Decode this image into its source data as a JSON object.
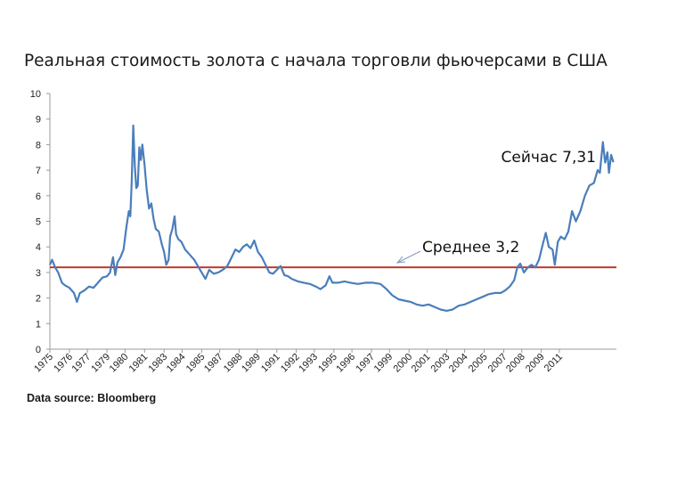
{
  "chart_data": {
    "type": "line",
    "title": "Реальная стоимость золота с начала торговли фьючерсами в США",
    "source": "Data source: Bloomberg",
    "ylim": [
      0,
      10
    ],
    "y_ticks": [
      "0",
      "1",
      "2",
      "3",
      "4",
      "5",
      "6",
      "7",
      "8",
      "9",
      "10"
    ],
    "x_range": [
      1975,
      2012.7
    ],
    "x_ticks": [
      {
        "label": "1975",
        "x": 1975.0
      },
      {
        "label": "1976",
        "x": 1976.3
      },
      {
        "label": "1977",
        "x": 1977.5
      },
      {
        "label": "1979",
        "x": 1978.8
      },
      {
        "label": "1980",
        "x": 1980.0
      },
      {
        "label": "1981",
        "x": 1981.3
      },
      {
        "label": "1983",
        "x": 1982.6
      },
      {
        "label": "1984",
        "x": 1983.8
      },
      {
        "label": "1985",
        "x": 1985.1
      },
      {
        "label": "1987",
        "x": 1986.3
      },
      {
        "label": "1988",
        "x": 1987.6
      },
      {
        "label": "1989",
        "x": 1988.8
      },
      {
        "label": "1991",
        "x": 1990.1
      },
      {
        "label": "1992",
        "x": 1991.4
      },
      {
        "label": "1993",
        "x": 1992.6
      },
      {
        "label": "1995",
        "x": 1993.9
      },
      {
        "label": "1996",
        "x": 1995.1
      },
      {
        "label": "1997",
        "x": 1996.4
      },
      {
        "label": "1999",
        "x": 1997.6
      },
      {
        "label": "2000",
        "x": 1998.9
      },
      {
        "label": "2001",
        "x": 2000.1
      },
      {
        "label": "2003",
        "x": 2001.4
      },
      {
        "label": "2004",
        "x": 2002.6
      },
      {
        "label": "2005",
        "x": 2003.9
      },
      {
        "label": "2007",
        "x": 2005.2
      },
      {
        "label": "2008",
        "x": 2006.4
      },
      {
        "label": "2009",
        "x": 2007.7
      },
      {
        "label": "2011",
        "x": 2008.9
      }
    ],
    "average": {
      "value": 3.2,
      "label": "Среднее 3,2",
      "color": "#c0392b"
    },
    "current": {
      "value": 7.31,
      "label": "Сейчас 7,31"
    },
    "series": [
      {
        "color": "#4a7ebb",
        "points": [
          [
            1975.0,
            3.3
          ],
          [
            1975.15,
            3.5
          ],
          [
            1975.35,
            3.2
          ],
          [
            1975.55,
            3.0
          ],
          [
            1975.8,
            2.6
          ],
          [
            1976.0,
            2.5
          ],
          [
            1976.3,
            2.4
          ],
          [
            1976.6,
            2.2
          ],
          [
            1976.8,
            1.85
          ],
          [
            1977.0,
            2.2
          ],
          [
            1977.3,
            2.3
          ],
          [
            1977.6,
            2.45
          ],
          [
            1977.9,
            2.4
          ],
          [
            1978.2,
            2.6
          ],
          [
            1978.5,
            2.8
          ],
          [
            1978.8,
            2.85
          ],
          [
            1979.0,
            3.0
          ],
          [
            1979.2,
            3.6
          ],
          [
            1979.35,
            2.9
          ],
          [
            1979.5,
            3.4
          ],
          [
            1979.7,
            3.6
          ],
          [
            1979.9,
            3.9
          ],
          [
            1980.1,
            4.8
          ],
          [
            1980.25,
            5.4
          ],
          [
            1980.35,
            5.2
          ],
          [
            1980.45,
            6.6
          ],
          [
            1980.55,
            8.75
          ],
          [
            1980.65,
            7.2
          ],
          [
            1980.75,
            6.3
          ],
          [
            1980.85,
            6.4
          ],
          [
            1980.95,
            7.9
          ],
          [
            1981.05,
            7.4
          ],
          [
            1981.15,
            8.0
          ],
          [
            1981.3,
            7.2
          ],
          [
            1981.45,
            6.2
          ],
          [
            1981.6,
            5.5
          ],
          [
            1981.75,
            5.7
          ],
          [
            1981.9,
            5.1
          ],
          [
            1982.05,
            4.7
          ],
          [
            1982.25,
            4.6
          ],
          [
            1982.45,
            4.1
          ],
          [
            1982.6,
            3.8
          ],
          [
            1982.75,
            3.3
          ],
          [
            1982.9,
            3.5
          ],
          [
            1983.0,
            4.4
          ],
          [
            1983.15,
            4.7
          ],
          [
            1983.3,
            5.2
          ],
          [
            1983.4,
            4.5
          ],
          [
            1983.55,
            4.3
          ],
          [
            1983.75,
            4.2
          ],
          [
            1984.0,
            3.9
          ],
          [
            1984.3,
            3.7
          ],
          [
            1984.6,
            3.5
          ],
          [
            1984.9,
            3.2
          ],
          [
            1985.1,
            3.0
          ],
          [
            1985.35,
            2.75
          ],
          [
            1985.6,
            3.1
          ],
          [
            1985.9,
            2.95
          ],
          [
            1986.2,
            3.0
          ],
          [
            1986.5,
            3.1
          ],
          [
            1986.8,
            3.25
          ],
          [
            1987.1,
            3.6
          ],
          [
            1987.35,
            3.9
          ],
          [
            1987.6,
            3.8
          ],
          [
            1987.85,
            4.0
          ],
          [
            1988.1,
            4.1
          ],
          [
            1988.35,
            3.95
          ],
          [
            1988.6,
            4.25
          ],
          [
            1988.85,
            3.8
          ],
          [
            1989.1,
            3.6
          ],
          [
            1989.35,
            3.3
          ],
          [
            1989.6,
            3.0
          ],
          [
            1989.85,
            2.95
          ],
          [
            1990.1,
            3.1
          ],
          [
            1990.35,
            3.25
          ],
          [
            1990.6,
            2.9
          ],
          [
            1990.85,
            2.85
          ],
          [
            1991.1,
            2.75
          ],
          [
            1991.5,
            2.65
          ],
          [
            1991.9,
            2.6
          ],
          [
            1992.3,
            2.55
          ],
          [
            1992.7,
            2.45
          ],
          [
            1993.0,
            2.35
          ],
          [
            1993.35,
            2.5
          ],
          [
            1993.6,
            2.85
          ],
          [
            1993.8,
            2.6
          ],
          [
            1994.2,
            2.6
          ],
          [
            1994.6,
            2.65
          ],
          [
            1995.0,
            2.6
          ],
          [
            1995.5,
            2.55
          ],
          [
            1996.0,
            2.6
          ],
          [
            1996.5,
            2.6
          ],
          [
            1997.0,
            2.55
          ],
          [
            1997.4,
            2.35
          ],
          [
            1997.8,
            2.1
          ],
          [
            1998.2,
            1.95
          ],
          [
            1998.6,
            1.9
          ],
          [
            1999.0,
            1.85
          ],
          [
            1999.4,
            1.75
          ],
          [
            1999.8,
            1.7
          ],
          [
            2000.2,
            1.75
          ],
          [
            2000.6,
            1.65
          ],
          [
            2001.0,
            1.55
          ],
          [
            2001.4,
            1.5
          ],
          [
            2001.8,
            1.55
          ],
          [
            2002.2,
            1.7
          ],
          [
            2002.6,
            1.75
          ],
          [
            2003.0,
            1.85
          ],
          [
            2003.4,
            1.95
          ],
          [
            2003.8,
            2.05
          ],
          [
            2004.2,
            2.15
          ],
          [
            2004.6,
            2.2
          ],
          [
            2005.0,
            2.2
          ],
          [
            2005.3,
            2.3
          ],
          [
            2005.6,
            2.45
          ],
          [
            2005.9,
            2.7
          ],
          [
            2006.1,
            3.2
          ],
          [
            2006.3,
            3.35
          ],
          [
            2006.55,
            3.0
          ],
          [
            2006.8,
            3.2
          ],
          [
            2007.05,
            3.3
          ],
          [
            2007.3,
            3.2
          ],
          [
            2007.55,
            3.5
          ],
          [
            2007.8,
            4.1
          ],
          [
            2008.0,
            4.55
          ],
          [
            2008.2,
            4.0
          ],
          [
            2008.45,
            3.9
          ],
          [
            2008.6,
            3.3
          ],
          [
            2008.8,
            4.2
          ],
          [
            2009.0,
            4.4
          ],
          [
            2009.25,
            4.3
          ],
          [
            2009.5,
            4.6
          ],
          [
            2009.75,
            5.4
          ],
          [
            2010.0,
            5.0
          ],
          [
            2010.3,
            5.4
          ],
          [
            2010.6,
            6.0
          ],
          [
            2010.9,
            6.4
          ],
          [
            2011.2,
            6.5
          ],
          [
            2011.45,
            7.0
          ],
          [
            2011.6,
            6.9
          ],
          [
            2011.8,
            8.1
          ],
          [
            2011.95,
            7.3
          ],
          [
            2012.1,
            7.7
          ],
          [
            2012.2,
            6.9
          ],
          [
            2012.35,
            7.6
          ],
          [
            2012.5,
            7.31
          ]
        ]
      }
    ]
  }
}
